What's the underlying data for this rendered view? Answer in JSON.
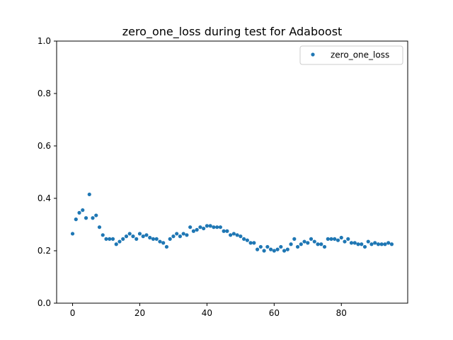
{
  "chart_data": {
    "type": "scatter",
    "title": "zero_one_loss during test for Adaboost",
    "xlabel": "",
    "ylabel": "",
    "xlim": [
      -4.75,
      99.75
    ],
    "ylim": [
      0.0,
      1.0
    ],
    "xticks": [
      0,
      20,
      40,
      60,
      80
    ],
    "xtick_labels": [
      "0",
      "20",
      "40",
      "60",
      "80"
    ],
    "yticks": [
      0.0,
      0.2,
      0.4,
      0.6,
      0.8,
      1.0
    ],
    "ytick_labels": [
      "0.0",
      "0.2",
      "0.4",
      "0.6",
      "0.8",
      "1.0"
    ],
    "grid": false,
    "legend_position": "top-right",
    "series": [
      {
        "name": "zero_one_loss",
        "color": "#1f77b4",
        "x": [
          0,
          1,
          2,
          3,
          4,
          5,
          6,
          7,
          8,
          9,
          10,
          11,
          12,
          13,
          14,
          15,
          16,
          17,
          18,
          19,
          20,
          21,
          22,
          23,
          24,
          25,
          26,
          27,
          28,
          29,
          30,
          31,
          32,
          33,
          34,
          35,
          36,
          37,
          38,
          39,
          40,
          41,
          42,
          43,
          44,
          45,
          46,
          47,
          48,
          49,
          50,
          51,
          52,
          53,
          54,
          55,
          56,
          57,
          58,
          59,
          60,
          61,
          62,
          63,
          64,
          65,
          66,
          67,
          68,
          69,
          70,
          71,
          72,
          73,
          74,
          75,
          76,
          77,
          78,
          79,
          80,
          81,
          82,
          83,
          84,
          85,
          86,
          87,
          88,
          89,
          90,
          91,
          92,
          93,
          94,
          95
        ],
        "y": [
          0.265,
          0.32,
          0.345,
          0.355,
          0.325,
          0.415,
          0.325,
          0.335,
          0.29,
          0.26,
          0.245,
          0.245,
          0.245,
          0.225,
          0.235,
          0.245,
          0.255,
          0.265,
          0.255,
          0.245,
          0.265,
          0.255,
          0.26,
          0.25,
          0.245,
          0.245,
          0.235,
          0.23,
          0.215,
          0.245,
          0.255,
          0.265,
          0.255,
          0.265,
          0.26,
          0.29,
          0.275,
          0.28,
          0.29,
          0.285,
          0.295,
          0.295,
          0.29,
          0.29,
          0.29,
          0.275,
          0.275,
          0.26,
          0.265,
          0.26,
          0.255,
          0.245,
          0.24,
          0.23,
          0.23,
          0.205,
          0.215,
          0.2,
          0.215,
          0.205,
          0.2,
          0.205,
          0.215,
          0.2,
          0.205,
          0.225,
          0.245,
          0.215,
          0.225,
          0.235,
          0.23,
          0.245,
          0.235,
          0.225,
          0.225,
          0.215,
          0.245,
          0.245,
          0.245,
          0.24,
          0.25,
          0.235,
          0.245,
          0.23,
          0.23,
          0.225,
          0.225,
          0.215,
          0.235,
          0.225,
          0.23,
          0.225,
          0.225,
          0.225,
          0.23,
          0.225
        ]
      }
    ]
  }
}
